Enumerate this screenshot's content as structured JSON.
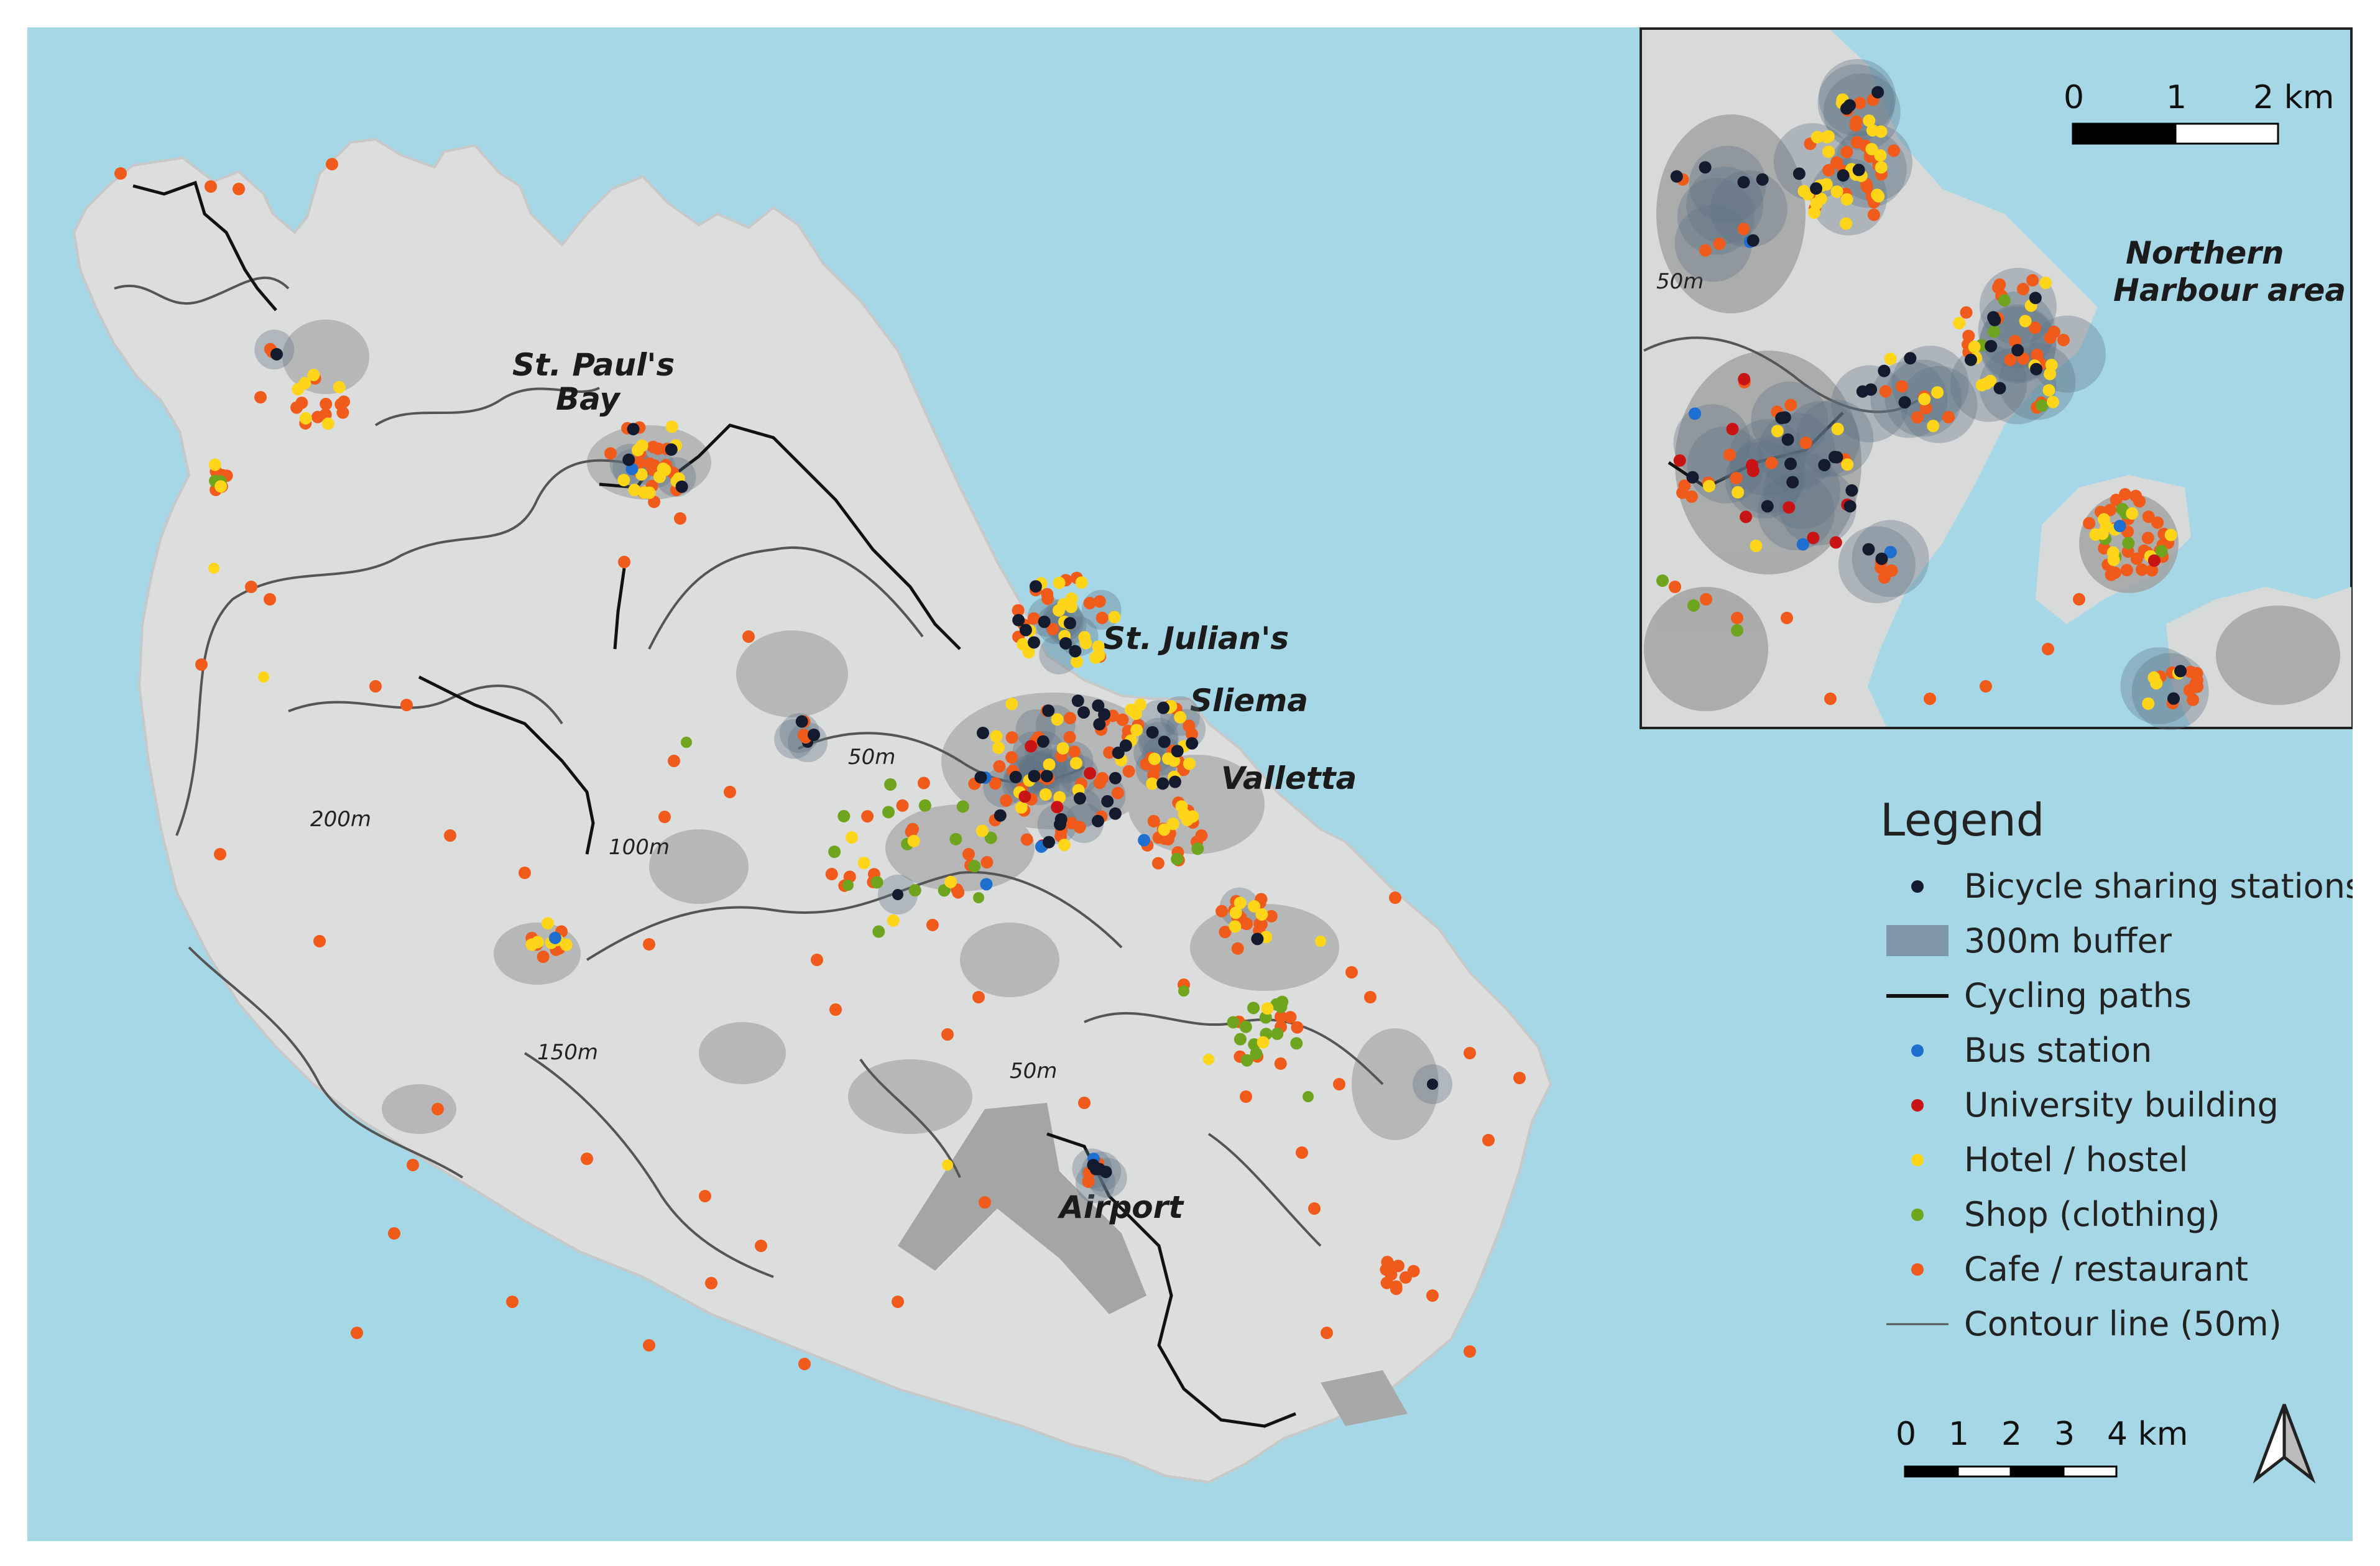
{
  "map": {
    "place_labels": {
      "st_pauls_bay_line1": "St. Paul's",
      "st_pauls_bay_line2": "Bay",
      "st_julians": "St. Julian's",
      "sliema": "Sliema",
      "valletta": "Valletta",
      "airport": "Airport"
    },
    "contour_labels": {
      "c200": "200m",
      "c100": "100m",
      "c150": "150m",
      "c50_a": "50m",
      "c50_b": "50m",
      "inset_50": "50m"
    }
  },
  "inset": {
    "title_line1": "Northern",
    "title_line2": "Harbour area",
    "scale_ticks": [
      "0",
      "1",
      "2 km"
    ]
  },
  "legend": {
    "title": "Legend",
    "items": [
      {
        "label": "Bicycle sharing stations",
        "symbol": "dot",
        "color": "#141b2e"
      },
      {
        "label": "300m buffer",
        "symbol": "rect",
        "color": "#7e97a8"
      },
      {
        "label": "Cycling paths",
        "symbol": "line",
        "color": "#111111"
      },
      {
        "label": "Bus station",
        "symbol": "dot",
        "color": "#1e6fd0"
      },
      {
        "label": "University building",
        "symbol": "dot",
        "color": "#c81414"
      },
      {
        "label": "Hotel / hostel",
        "symbol": "dot",
        "color": "#ffd51a"
      },
      {
        "label": "Shop (clothing)",
        "symbol": "dot",
        "color": "#6ea41e"
      },
      {
        "label": "Cafe / restaurant",
        "symbol": "dot",
        "color": "#f05a1a"
      },
      {
        "label": "Contour line (50m)",
        "symbol": "thin-line",
        "color": "#555555"
      }
    ]
  },
  "scale_bar": {
    "ticks": [
      "0",
      "1",
      "2",
      "3",
      "4 km"
    ]
  },
  "north_arrow": {
    "icon": "north-arrow-icon"
  },
  "colors": {
    "sea": "#a6d7e6",
    "land": "#dcdddd",
    "urban": "#aaaaaa",
    "station": "#141b2e",
    "buffer": "#5f7285",
    "bus": "#1e6fd0",
    "university": "#c81414",
    "hotel": "#ffd51a",
    "shop": "#6ea41e",
    "cafe": "#f05a1a"
  }
}
